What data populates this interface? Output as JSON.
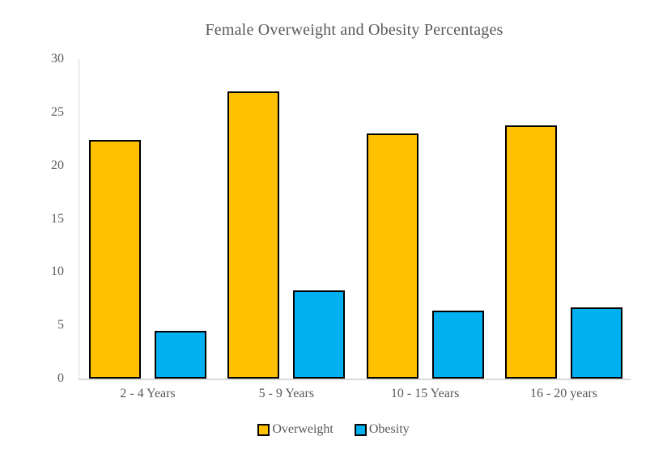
{
  "chart_data": {
    "type": "bar",
    "title": "Female Overweight and Obesity Percentages",
    "categories": [
      "2 - 4 Years",
      "5 - 9 Years",
      "10 - 15 Years",
      "16 - 20 years"
    ],
    "series": [
      {
        "name": "Overweight",
        "color": "#FFC000",
        "values": [
          22.4,
          27.0,
          23.0,
          23.8
        ]
      },
      {
        "name": "Obesity",
        "color": "#00B0F0",
        "values": [
          4.5,
          8.3,
          6.4,
          6.7
        ]
      }
    ],
    "xlabel": "",
    "ylabel": "",
    "ylim": [
      0,
      30
    ],
    "yticks": [
      0,
      5,
      10,
      15,
      20,
      25,
      30
    ],
    "grid": false,
    "legend_position": "bottom",
    "bar_border_color": "#000000",
    "text_color": "#595959",
    "axis_line_color": "#D9D9D9"
  }
}
